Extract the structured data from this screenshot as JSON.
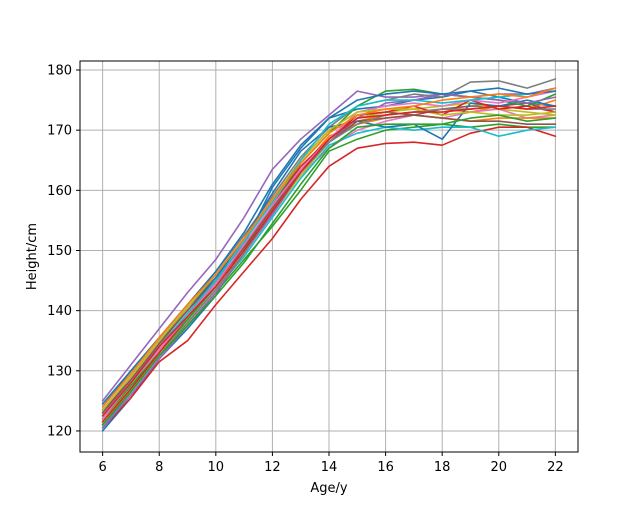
{
  "chart_data": {
    "type": "line",
    "title": "",
    "xlabel": "Age/y",
    "ylabel": "Height/cm",
    "xlim": [
      5.2,
      22.8
    ],
    "ylim": [
      116.5,
      181.5
    ],
    "xticks": [
      6,
      8,
      10,
      12,
      14,
      16,
      18,
      20,
      22
    ],
    "yticks": [
      120,
      130,
      140,
      150,
      160,
      170,
      180
    ],
    "grid": true,
    "legend": false,
    "x": [
      6,
      7,
      8,
      9,
      10,
      11,
      12,
      13,
      14,
      15,
      16,
      17,
      18,
      19,
      20,
      21,
      22
    ],
    "series": [
      {
        "color": "#1f77b4",
        "values": [
          120.0,
          125.5,
          132.0,
          137.0,
          142.5,
          151.0,
          160.5,
          167.0,
          172.0,
          173.5,
          174.0,
          175.0,
          175.5,
          176.5,
          175.5,
          174.5,
          174.0
        ]
      },
      {
        "color": "#ff7f0e",
        "values": [
          122.0,
          128.0,
          134.5,
          139.0,
          145.0,
          151.5,
          158.5,
          165.0,
          170.0,
          171.5,
          172.5,
          173.0,
          173.5,
          173.0,
          174.0,
          173.5,
          175.0
        ]
      },
      {
        "color": "#2ca02c",
        "values": [
          121.0,
          126.5,
          132.5,
          137.5,
          143.0,
          148.5,
          154.0,
          160.0,
          166.5,
          168.5,
          170.0,
          170.5,
          171.0,
          170.5,
          171.0,
          170.5,
          170.5
        ]
      },
      {
        "color": "#d62728",
        "values": [
          120.5,
          125.5,
          131.5,
          135.0,
          141.0,
          146.5,
          152.0,
          158.5,
          164.0,
          167.0,
          167.8,
          168.0,
          167.5,
          169.5,
          170.5,
          170.5,
          169.0
        ]
      },
      {
        "color": "#9467bd",
        "values": [
          125.0,
          131.0,
          137.0,
          143.0,
          148.5,
          155.5,
          163.5,
          168.5,
          172.5,
          176.5,
          175.5,
          175.5,
          176.0,
          175.5,
          176.0,
          176.0,
          177.0
        ]
      },
      {
        "color": "#8c564b",
        "values": [
          123.0,
          129.0,
          135.0,
          140.5,
          145.5,
          151.0,
          157.0,
          163.5,
          168.5,
          172.0,
          173.0,
          172.5,
          173.5,
          174.0,
          174.0,
          174.5,
          173.0
        ]
      },
      {
        "color": "#e377c2",
        "values": [
          122.5,
          128.5,
          134.0,
          139.5,
          144.5,
          150.5,
          156.5,
          162.5,
          167.0,
          170.0,
          171.5,
          172.5,
          172.0,
          173.0,
          173.5,
          172.0,
          172.5
        ]
      },
      {
        "color": "#7f7f7f",
        "values": [
          124.0,
          130.0,
          135.5,
          141.0,
          146.5,
          152.5,
          159.0,
          165.5,
          170.5,
          174.0,
          175.0,
          176.0,
          175.5,
          178.0,
          178.2,
          177.0,
          178.5
        ]
      },
      {
        "color": "#bcbd22",
        "values": [
          121.5,
          127.5,
          133.5,
          138.5,
          144.0,
          150.0,
          156.0,
          162.5,
          168.0,
          172.0,
          173.0,
          173.5,
          174.0,
          174.5,
          173.5,
          173.0,
          172.5
        ]
      },
      {
        "color": "#17becf",
        "values": [
          120.5,
          126.5,
          132.5,
          138.0,
          143.5,
          149.0,
          155.5,
          162.0,
          167.5,
          169.5,
          170.5,
          170.0,
          170.5,
          170.5,
          169.0,
          170.0,
          170.5
        ]
      },
      {
        "color": "#1f77b4",
        "values": [
          123.5,
          129.0,
          135.0,
          140.0,
          145.5,
          152.0,
          159.5,
          166.5,
          170.5,
          171.5,
          170.5,
          171.0,
          168.5,
          174.5,
          174.0,
          175.0,
          174.0
        ]
      },
      {
        "color": "#ff7f0e",
        "values": [
          121.0,
          127.0,
          133.0,
          138.0,
          143.5,
          149.5,
          156.5,
          163.5,
          169.0,
          171.0,
          172.0,
          172.5,
          172.0,
          171.5,
          172.0,
          172.0,
          172.0
        ]
      },
      {
        "color": "#2ca02c",
        "values": [
          122.0,
          127.5,
          133.0,
          138.5,
          144.0,
          150.0,
          157.5,
          164.5,
          169.5,
          174.0,
          176.5,
          176.8,
          176.0,
          175.5,
          175.0,
          174.0,
          176.0
        ]
      },
      {
        "color": "#d62728",
        "values": [
          121.5,
          127.0,
          133.0,
          139.0,
          144.5,
          150.5,
          157.5,
          164.0,
          168.5,
          172.5,
          173.0,
          174.0,
          172.5,
          175.0,
          173.5,
          174.0,
          173.0
        ]
      },
      {
        "color": "#9467bd",
        "values": [
          120.5,
          126.0,
          132.0,
          137.5,
          143.0,
          149.5,
          156.0,
          163.0,
          168.0,
          172.0,
          174.5,
          175.0,
          176.0,
          175.5,
          175.0,
          174.5,
          175.5
        ]
      },
      {
        "color": "#8c564b",
        "values": [
          123.0,
          128.5,
          134.5,
          140.0,
          145.0,
          150.5,
          157.0,
          163.5,
          168.0,
          171.5,
          172.0,
          172.5,
          172.0,
          171.5,
          171.5,
          171.0,
          171.0
        ]
      },
      {
        "color": "#e377c2",
        "values": [
          122.0,
          128.0,
          133.5,
          139.0,
          144.5,
          151.0,
          157.5,
          163.5,
          168.5,
          173.0,
          174.0,
          174.5,
          174.0,
          175.0,
          174.5,
          175.5,
          176.5
        ]
      },
      {
        "color": "#7f7f7f",
        "values": [
          121.0,
          126.5,
          132.5,
          138.0,
          143.5,
          149.5,
          156.5,
          163.0,
          168.0,
          171.0,
          172.5,
          173.0,
          173.5,
          173.5,
          174.0,
          173.5,
          173.5
        ]
      },
      {
        "color": "#bcbd22",
        "values": [
          123.5,
          129.0,
          135.0,
          140.5,
          146.0,
          152.0,
          158.5,
          165.0,
          170.0,
          173.0,
          173.5,
          173.5,
          172.5,
          173.0,
          172.5,
          172.5,
          173.0
        ]
      },
      {
        "color": "#17becf",
        "values": [
          122.5,
          128.0,
          134.0,
          139.5,
          145.0,
          151.5,
          158.0,
          165.0,
          171.0,
          174.0,
          175.0,
          175.0,
          174.5,
          175.0,
          175.5,
          176.0,
          176.5
        ]
      },
      {
        "color": "#1f77b4",
        "values": [
          124.5,
          130.0,
          135.5,
          141.0,
          146.5,
          153.0,
          161.0,
          167.5,
          172.0,
          175.0,
          176.0,
          176.5,
          176.0,
          176.5,
          177.0,
          176.0,
          176.5
        ]
      },
      {
        "color": "#2ca02c",
        "values": [
          121.0,
          126.5,
          132.5,
          137.5,
          142.5,
          148.0,
          154.5,
          161.0,
          167.0,
          170.5,
          171.0,
          171.0,
          171.0,
          172.0,
          172.5,
          171.5,
          172.0
        ]
      },
      {
        "color": "#ff7f0e",
        "values": [
          124.0,
          129.5,
          135.5,
          141.0,
          146.0,
          152.0,
          158.5,
          164.5,
          169.5,
          172.5,
          173.5,
          174.0,
          175.0,
          175.5,
          176.0,
          175.5,
          177.0
        ]
      },
      {
        "color": "#d62728",
        "values": [
          122.5,
          128.0,
          134.0,
          139.0,
          144.0,
          150.0,
          156.5,
          163.0,
          168.5,
          172.0,
          172.5,
          173.0,
          173.0,
          173.5,
          174.0,
          173.5,
          174.0
        ]
      }
    ]
  }
}
